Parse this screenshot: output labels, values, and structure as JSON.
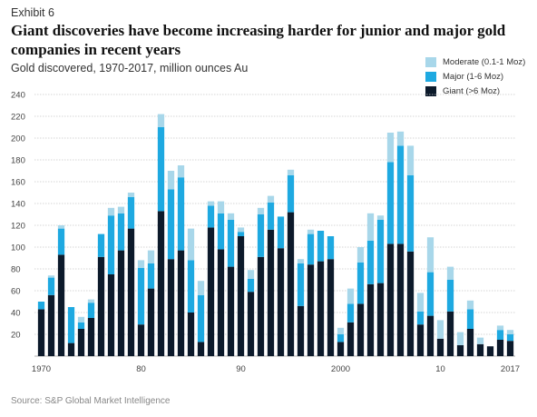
{
  "header": {
    "exhibit": "Exhibit 6",
    "title": "Giant discoveries have become increasing harder for junior and major gold companies in recent years",
    "subtitle": "Gold discovered, 1970-2017, million ounces Au"
  },
  "footer": {
    "source": "Source: S&P Global Market Intelligence"
  },
  "colors": {
    "giant": "#0c1a2b",
    "major": "#1ea9e1",
    "moderate": "#a8d7ea",
    "grid": "#c9c9c9"
  },
  "chart_data": {
    "type": "bar",
    "stacked": true,
    "title": "Giant discoveries have become increasing harder for junior and major gold companies in recent years",
    "subtitle": "Gold discovered, 1970-2017, million ounces Au",
    "xlabel": "",
    "ylabel": "",
    "ylim": [
      0,
      240
    ],
    "yticks": [
      20,
      40,
      60,
      80,
      100,
      120,
      140,
      160,
      180,
      200,
      220,
      240
    ],
    "grid": true,
    "legend_position": "top-right",
    "x_tick_labels": [
      {
        "index": 0,
        "label": "1970"
      },
      {
        "index": 10,
        "label": "80"
      },
      {
        "index": 20,
        "label": "90"
      },
      {
        "index": 30,
        "label": "2000"
      },
      {
        "index": 40,
        "label": "10"
      },
      {
        "index": 47,
        "label": "2017"
      }
    ],
    "categories": [
      "1970",
      "1971",
      "1972",
      "1973",
      "1974",
      "1975",
      "1976",
      "1977",
      "1978",
      "1979",
      "1980",
      "1981",
      "1982",
      "1983",
      "1984",
      "1985",
      "1986",
      "1987",
      "1988",
      "1989",
      "1990",
      "1991",
      "1992",
      "1993",
      "1994",
      "1995",
      "1996",
      "1997",
      "1998",
      "1999",
      "2000",
      "2001",
      "2002",
      "2003",
      "2004",
      "2005",
      "2006",
      "2007",
      "2008",
      "2009",
      "2010",
      "2011",
      "2012",
      "2013",
      "2014",
      "2015",
      "2016",
      "2017"
    ],
    "series": [
      {
        "name": "Giant (>6 Moz)",
        "key": "giant",
        "values": [
          43,
          56,
          93,
          12,
          25,
          35,
          91,
          75,
          97,
          117,
          29,
          62,
          133,
          89,
          97,
          40,
          13,
          118,
          98,
          82,
          110,
          59,
          91,
          116,
          99,
          132,
          46,
          84,
          87,
          89,
          13,
          31,
          48,
          66,
          67,
          103,
          103,
          96,
          29,
          37,
          16,
          41,
          10,
          25,
          11,
          9,
          15,
          14
        ]
      },
      {
        "name": "Major (1-6 Moz)",
        "key": "major",
        "values": [
          7,
          16,
          24,
          33,
          6,
          14,
          21,
          54,
          34,
          29,
          52,
          23,
          77,
          64,
          67,
          48,
          43,
          20,
          33,
          43,
          4,
          12,
          39,
          25,
          29,
          34,
          39,
          28,
          28,
          21,
          7,
          17,
          38,
          40,
          58,
          75,
          90,
          70,
          12,
          40,
          0,
          29,
          0,
          18,
          0,
          0,
          9,
          6
        ]
      },
      {
        "name": "Moderate (0.1-1 Moz)",
        "key": "moderate",
        "values": [
          0,
          2,
          3,
          0,
          5,
          3,
          0,
          7,
          6,
          4,
          7,
          12,
          12,
          17,
          11,
          29,
          13,
          4,
          11,
          6,
          4,
          8,
          6,
          6,
          0,
          5,
          4,
          4,
          0,
          0,
          6,
          14,
          14,
          25,
          4,
          27,
          13,
          27,
          17,
          32,
          17,
          12,
          12,
          8,
          6,
          0,
          4,
          4
        ]
      }
    ]
  }
}
